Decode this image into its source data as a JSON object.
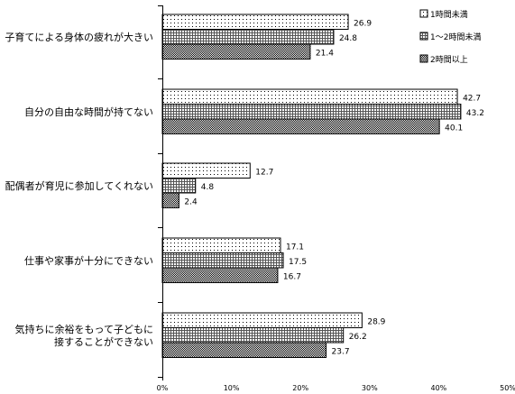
{
  "chart_data": {
    "type": "bar",
    "orientation": "horizontal",
    "categories": [
      [
        "子育てによる身体の疲れが大きい"
      ],
      [
        "自分の自由な時間が持てない"
      ],
      [
        "配偶者が育児に参加してくれない"
      ],
      [
        "仕事や家事が十分にできない"
      ],
      [
        "気持ちに余裕をもって子どもに",
        "接することができない"
      ]
    ],
    "series": [
      {
        "name": "1時間未満",
        "values": [
          26.9,
          42.7,
          12.7,
          17.1,
          28.9
        ],
        "pattern": "dots"
      },
      {
        "name": "1～2時間未満",
        "values": [
          24.8,
          43.2,
          4.8,
          17.5,
          26.2
        ],
        "pattern": "grid"
      },
      {
        "name": "2時間以上",
        "values": [
          21.4,
          40.1,
          2.4,
          16.7,
          23.7
        ],
        "pattern": "dense"
      }
    ],
    "xlim": [
      0,
      50
    ],
    "xticks": [
      0,
      10,
      20,
      30,
      40,
      50
    ],
    "xtick_labels": [
      "0%",
      "10%",
      "20%",
      "30%",
      "40%",
      "50%"
    ],
    "legend_position": "top-right",
    "grid": false
  }
}
